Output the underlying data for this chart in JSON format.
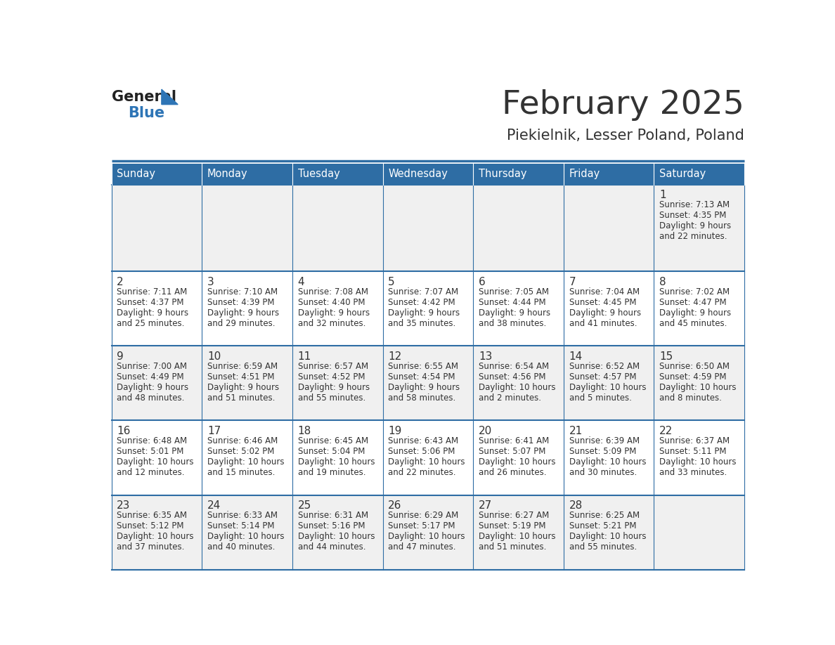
{
  "title": "February 2025",
  "subtitle": "Piekielnik, Lesser Poland, Poland",
  "header_bg": "#2E6DA4",
  "header_text_color": "#FFFFFF",
  "cell_bg_odd": "#F0F0F0",
  "cell_bg_even": "#FFFFFF",
  "day_number_color": "#333333",
  "text_color": "#333333",
  "line_color": "#2E6DA4",
  "days_of_week": [
    "Sunday",
    "Monday",
    "Tuesday",
    "Wednesday",
    "Thursday",
    "Friday",
    "Saturday"
  ],
  "calendar_data": [
    [
      null,
      null,
      null,
      null,
      null,
      null,
      {
        "day": 1,
        "sunrise": "7:13 AM",
        "sunset": "4:35 PM",
        "daylight": "9 hours",
        "daylight2": "and 22 minutes."
      }
    ],
    [
      {
        "day": 2,
        "sunrise": "7:11 AM",
        "sunset": "4:37 PM",
        "daylight": "9 hours",
        "daylight2": "and 25 minutes."
      },
      {
        "day": 3,
        "sunrise": "7:10 AM",
        "sunset": "4:39 PM",
        "daylight": "9 hours",
        "daylight2": "and 29 minutes."
      },
      {
        "day": 4,
        "sunrise": "7:08 AM",
        "sunset": "4:40 PM",
        "daylight": "9 hours",
        "daylight2": "and 32 minutes."
      },
      {
        "day": 5,
        "sunrise": "7:07 AM",
        "sunset": "4:42 PM",
        "daylight": "9 hours",
        "daylight2": "and 35 minutes."
      },
      {
        "day": 6,
        "sunrise": "7:05 AM",
        "sunset": "4:44 PM",
        "daylight": "9 hours",
        "daylight2": "and 38 minutes."
      },
      {
        "day": 7,
        "sunrise": "7:04 AM",
        "sunset": "4:45 PM",
        "daylight": "9 hours",
        "daylight2": "and 41 minutes."
      },
      {
        "day": 8,
        "sunrise": "7:02 AM",
        "sunset": "4:47 PM",
        "daylight": "9 hours",
        "daylight2": "and 45 minutes."
      }
    ],
    [
      {
        "day": 9,
        "sunrise": "7:00 AM",
        "sunset": "4:49 PM",
        "daylight": "9 hours",
        "daylight2": "and 48 minutes."
      },
      {
        "day": 10,
        "sunrise": "6:59 AM",
        "sunset": "4:51 PM",
        "daylight": "9 hours",
        "daylight2": "and 51 minutes."
      },
      {
        "day": 11,
        "sunrise": "6:57 AM",
        "sunset": "4:52 PM",
        "daylight": "9 hours",
        "daylight2": "and 55 minutes."
      },
      {
        "day": 12,
        "sunrise": "6:55 AM",
        "sunset": "4:54 PM",
        "daylight": "9 hours",
        "daylight2": "and 58 minutes."
      },
      {
        "day": 13,
        "sunrise": "6:54 AM",
        "sunset": "4:56 PM",
        "daylight": "10 hours",
        "daylight2": "and 2 minutes."
      },
      {
        "day": 14,
        "sunrise": "6:52 AM",
        "sunset": "4:57 PM",
        "daylight": "10 hours",
        "daylight2": "and 5 minutes."
      },
      {
        "day": 15,
        "sunrise": "6:50 AM",
        "sunset": "4:59 PM",
        "daylight": "10 hours",
        "daylight2": "and 8 minutes."
      }
    ],
    [
      {
        "day": 16,
        "sunrise": "6:48 AM",
        "sunset": "5:01 PM",
        "daylight": "10 hours",
        "daylight2": "and 12 minutes."
      },
      {
        "day": 17,
        "sunrise": "6:46 AM",
        "sunset": "5:02 PM",
        "daylight": "10 hours",
        "daylight2": "and 15 minutes."
      },
      {
        "day": 18,
        "sunrise": "6:45 AM",
        "sunset": "5:04 PM",
        "daylight": "10 hours",
        "daylight2": "and 19 minutes."
      },
      {
        "day": 19,
        "sunrise": "6:43 AM",
        "sunset": "5:06 PM",
        "daylight": "10 hours",
        "daylight2": "and 22 minutes."
      },
      {
        "day": 20,
        "sunrise": "6:41 AM",
        "sunset": "5:07 PM",
        "daylight": "10 hours",
        "daylight2": "and 26 minutes."
      },
      {
        "day": 21,
        "sunrise": "6:39 AM",
        "sunset": "5:09 PM",
        "daylight": "10 hours",
        "daylight2": "and 30 minutes."
      },
      {
        "day": 22,
        "sunrise": "6:37 AM",
        "sunset": "5:11 PM",
        "daylight": "10 hours",
        "daylight2": "and 33 minutes."
      }
    ],
    [
      {
        "day": 23,
        "sunrise": "6:35 AM",
        "sunset": "5:12 PM",
        "daylight": "10 hours",
        "daylight2": "and 37 minutes."
      },
      {
        "day": 24,
        "sunrise": "6:33 AM",
        "sunset": "5:14 PM",
        "daylight": "10 hours",
        "daylight2": "and 40 minutes."
      },
      {
        "day": 25,
        "sunrise": "6:31 AM",
        "sunset": "5:16 PM",
        "daylight": "10 hours",
        "daylight2": "and 44 minutes."
      },
      {
        "day": 26,
        "sunrise": "6:29 AM",
        "sunset": "5:17 PM",
        "daylight": "10 hours",
        "daylight2": "and 47 minutes."
      },
      {
        "day": 27,
        "sunrise": "6:27 AM",
        "sunset": "5:19 PM",
        "daylight": "10 hours",
        "daylight2": "and 51 minutes."
      },
      {
        "day": 28,
        "sunrise": "6:25 AM",
        "sunset": "5:21 PM",
        "daylight": "10 hours",
        "daylight2": "and 55 minutes."
      },
      null
    ]
  ],
  "logo_general_color": "#222222",
  "logo_blue_color": "#2E75B6"
}
